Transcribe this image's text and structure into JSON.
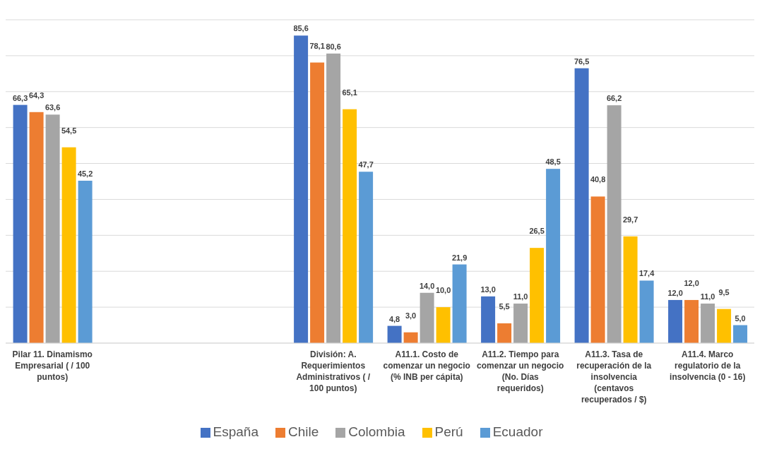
{
  "chart_data": {
    "type": "bar",
    "categories": [
      "Pilar 11. Dinamismo Empresarial ( / 100 puntos)",
      null,
      null,
      "División: A. Requerimientos Administrativos ( / 100 puntos)",
      "A11.1. Costo de comenzar un negocio (% INB per cápita)",
      "A11.2. Tiempo para comenzar un negocio (No. Días requeridos)",
      "A11.3. Tasa de recuperación de la insolvencia (centavos recuperados / $)",
      "A11.4. Marco regulatorio de la insolvencia (0 - 16)"
    ],
    "series": [
      {
        "name": "España",
        "color": "#4472c4",
        "values": [
          66.3,
          null,
          null,
          85.6,
          4.8,
          13.0,
          76.5,
          12.0
        ],
        "value_labels": [
          "66,3",
          null,
          null,
          "85,6",
          "4,8",
          "13,0",
          "76,5",
          "12,0"
        ]
      },
      {
        "name": "Chile",
        "color": "#ed7d31",
        "values": [
          64.3,
          null,
          null,
          78.1,
          3.0,
          5.5,
          40.8,
          12.0
        ],
        "value_labels": [
          "64,3",
          null,
          null,
          "78,1",
          "3,0",
          "5,5",
          "40,8",
          "12,0"
        ]
      },
      {
        "name": "Colombia",
        "color": "#a5a5a5",
        "values": [
          63.6,
          null,
          null,
          80.6,
          14.0,
          11.0,
          66.2,
          11.0
        ],
        "value_labels": [
          "63,6",
          null,
          null,
          "80,6",
          "14,0",
          "11,0",
          "66,2",
          "11,0"
        ]
      },
      {
        "name": "Perú",
        "color": "#ffc000",
        "values": [
          54.5,
          null,
          null,
          65.1,
          10.0,
          26.5,
          29.7,
          9.5
        ],
        "value_labels": [
          "54,5",
          null,
          null,
          "65,1",
          "10,0",
          "26,5",
          "29,7",
          "9,5"
        ]
      },
      {
        "name": "Ecuador",
        "color": "#5b9bd5",
        "values": [
          45.2,
          null,
          null,
          47.7,
          21.9,
          48.5,
          17.4,
          5.0
        ],
        "value_labels": [
          "45,2",
          null,
          null,
          "47,7",
          "21,9",
          "48,5",
          "17,4",
          "5,0"
        ]
      }
    ],
    "ylim": [
      0,
      90
    ],
    "yticks": [
      0,
      10,
      20,
      30,
      40,
      50,
      60,
      70,
      80,
      90
    ],
    "tick_labels": "x",
    "grid": "y",
    "legend": "bottom"
  }
}
